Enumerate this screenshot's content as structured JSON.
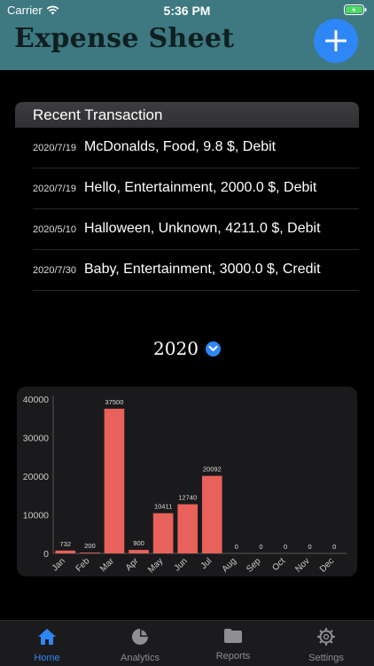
{
  "status": {
    "carrier": "Carrier",
    "time": "5:36 PM"
  },
  "app": {
    "title": "Expense Sheet"
  },
  "recent": {
    "title": "Recent Transaction",
    "items": [
      {
        "date": "2020/7/19",
        "desc": "McDonalds, Food, 9.8 $, Debit"
      },
      {
        "date": "2020/7/19",
        "desc": "Hello, Entertainment, 2000.0 $, Debit"
      },
      {
        "date": "2020/5/10",
        "desc": "Halloween, Unknown, 4211.0 $, Debit"
      },
      {
        "date": "2020/7/30",
        "desc": "Baby, Entertainment, 3000.0 $, Credit"
      }
    ]
  },
  "year_selector": {
    "year": "2020"
  },
  "chart_data": {
    "type": "bar",
    "categories": [
      "Jan",
      "Feb",
      "Mar",
      "Apr",
      "May",
      "Jun",
      "Jul",
      "Aug",
      "Sep",
      "Oct",
      "Nov",
      "Dec"
    ],
    "values": [
      732,
      200,
      37500,
      900,
      10411,
      12740,
      20092,
      0,
      0,
      0,
      0,
      0
    ],
    "ylim": [
      0,
      40000
    ],
    "yticks": [
      0,
      10000,
      20000,
      30000,
      40000
    ],
    "bar_color": "#e8615a"
  },
  "tabs": [
    {
      "label": "Home",
      "icon": "home-icon",
      "active": true
    },
    {
      "label": "Analytics",
      "icon": "pie-chart-icon",
      "active": false
    },
    {
      "label": "Reports",
      "icon": "folder-icon",
      "active": false
    },
    {
      "label": "Settings",
      "icon": "gear-icon",
      "active": false
    }
  ],
  "colors": {
    "header": "#3e7880",
    "accent": "#2f86f6",
    "bar": "#e8615a"
  }
}
